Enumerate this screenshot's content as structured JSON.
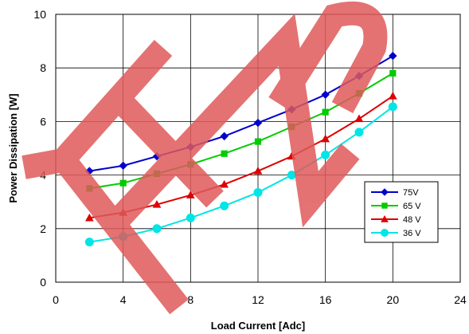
{
  "chart_data": {
    "type": "line",
    "title": "",
    "xlabel": "Load Current [Adc]",
    "ylabel": "Power Dissipation [W]",
    "xlim": [
      0,
      24
    ],
    "ylim": [
      0,
      10
    ],
    "xticks": [
      0,
      4,
      8,
      12,
      16,
      20,
      24
    ],
    "yticks": [
      0,
      2,
      4,
      6,
      8,
      10
    ],
    "grid": true,
    "legend_position": "lower-right",
    "watermark_text": "END",
    "watermark_color": "#e05a5a",
    "series": [
      {
        "name": "75V",
        "color": "#0000cc",
        "marker": "diamond",
        "x": [
          2,
          4,
          6,
          8,
          10,
          12,
          14,
          16,
          18,
          20
        ],
        "y": [
          4.15,
          4.35,
          4.7,
          5.05,
          5.45,
          5.95,
          6.45,
          7.0,
          7.7,
          8.45
        ]
      },
      {
        "name": "65 V",
        "color": "#00cc00",
        "marker": "square",
        "x": [
          2,
          4,
          6,
          8,
          10,
          12,
          14,
          16,
          18,
          20
        ],
        "y": [
          3.5,
          3.7,
          4.05,
          4.4,
          4.8,
          5.25,
          5.8,
          6.35,
          7.05,
          7.8
        ]
      },
      {
        "name": "48 V",
        "color": "#dd0000",
        "marker": "triangle",
        "x": [
          2,
          4,
          6,
          8,
          10,
          12,
          14,
          16,
          18,
          20
        ],
        "y": [
          2.4,
          2.6,
          2.9,
          3.25,
          3.65,
          4.15,
          4.7,
          5.35,
          6.1,
          6.95
        ]
      },
      {
        "name": "36 V",
        "color": "#00e5e5",
        "marker": "circle",
        "x": [
          2,
          4,
          6,
          8,
          10,
          12,
          14,
          16,
          18,
          20
        ],
        "y": [
          1.5,
          1.7,
          2.0,
          2.4,
          2.85,
          3.35,
          4.0,
          4.75,
          5.6,
          6.55
        ]
      }
    ]
  }
}
